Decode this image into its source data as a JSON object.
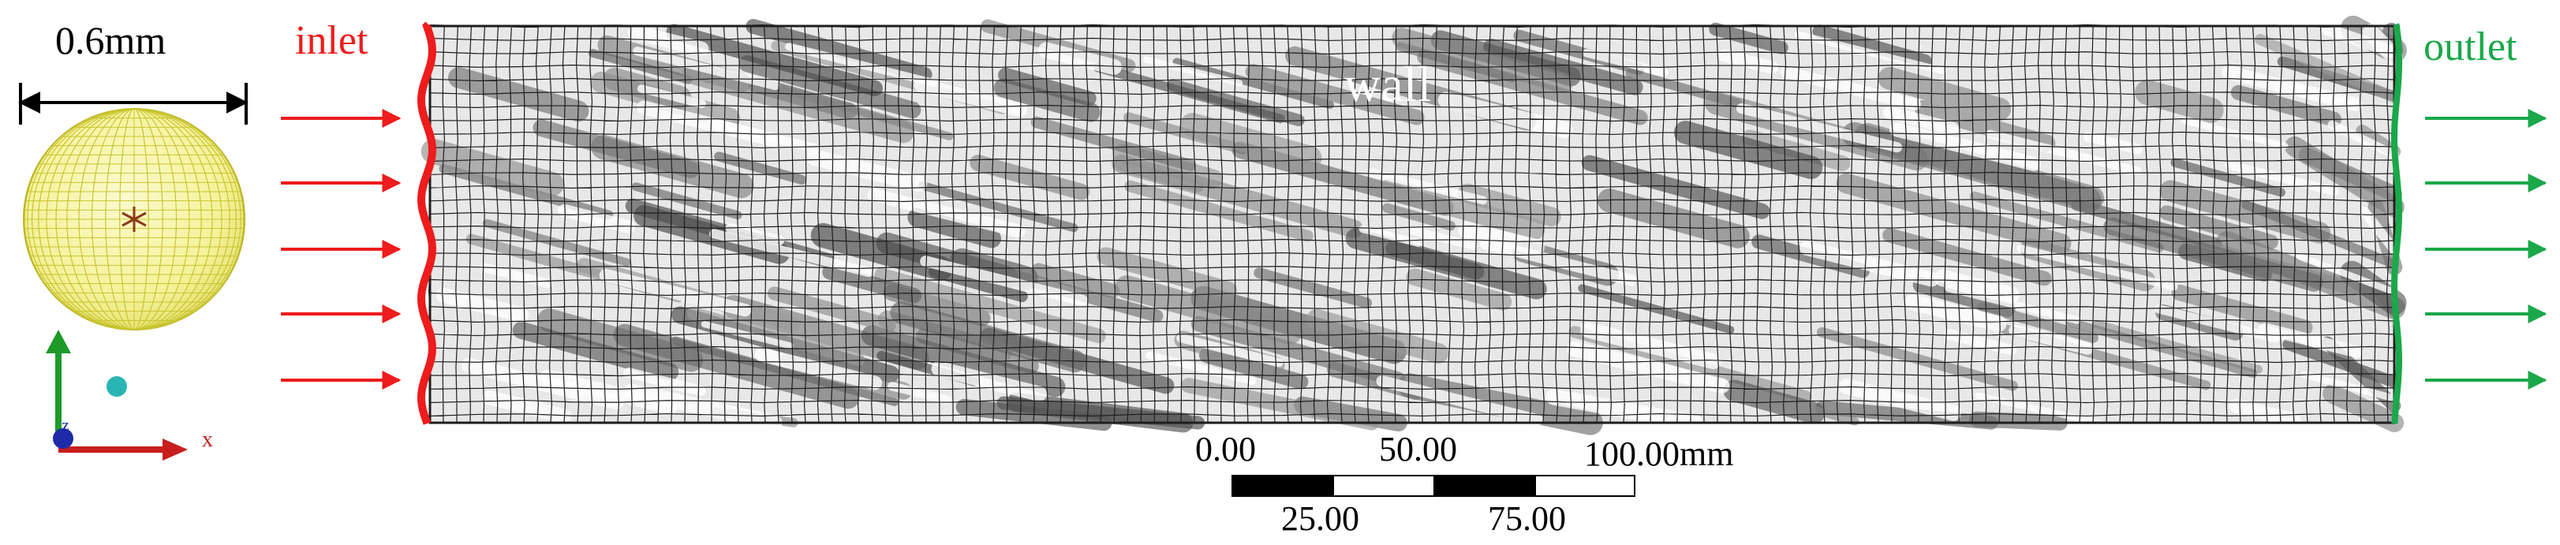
{
  "particle": {
    "diameter_label": "0.6mm"
  },
  "labels": {
    "inlet": "inlet",
    "outlet": "outlet",
    "wall": "wall"
  },
  "axes": {
    "x_label": "x",
    "z_label": "z"
  },
  "scale_bar": {
    "top_labels": [
      "0.00",
      "50.00",
      "100.00mm"
    ],
    "bottom_labels": [
      "25.00",
      "75.00"
    ]
  },
  "colors": {
    "inlet": "#ee1c1c",
    "outlet": "#1aa84a",
    "particle_fill": "#f4f29a",
    "particle_mesh": "#c9c42e",
    "mesh_line": "#1e1e1e",
    "axis_x": "#c81e1e",
    "axis_y": "#1e9a2a",
    "axis_z": "#1e2aa8",
    "probe": "#2ab5b5"
  }
}
